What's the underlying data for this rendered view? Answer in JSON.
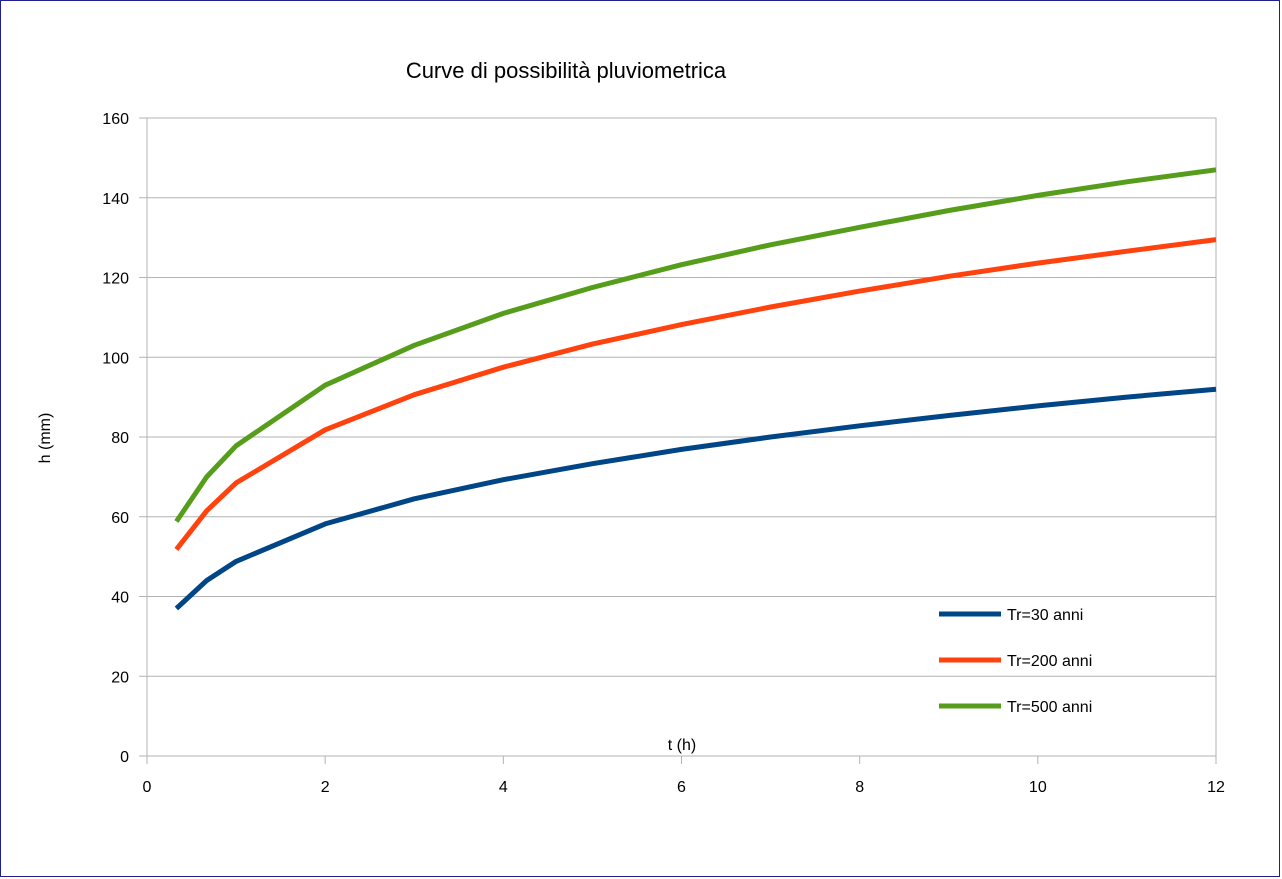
{
  "chart_data": {
    "type": "line",
    "title": "Curve di possibilità pluviometrica",
    "xlabel": "t (h)",
    "ylabel": "h (mm)",
    "xlim": [
      0,
      12
    ],
    "ylim": [
      0,
      160
    ],
    "xticks": [
      0,
      2,
      4,
      6,
      8,
      10,
      12
    ],
    "yticks": [
      0,
      20,
      40,
      60,
      80,
      100,
      120,
      140,
      160
    ],
    "grid": "horizontal",
    "legend_position": "bottom-right",
    "series": [
      {
        "name": "Tr=30 anni",
        "color": "#004586",
        "x": [
          0.33,
          0.67,
          1,
          2,
          3,
          4,
          5,
          6,
          7,
          8,
          9,
          10,
          11,
          12
        ],
        "y": [
          37,
          44,
          48.8,
          58.2,
          64.5,
          69.3,
          73.3,
          76.9,
          80.0,
          82.8,
          85.4,
          87.8,
          90.0,
          92.0
        ]
      },
      {
        "name": "Tr=200 anni",
        "color": "#ff420e",
        "x": [
          0.33,
          0.67,
          1,
          2,
          3,
          4,
          5,
          6,
          7,
          8,
          9,
          10,
          11,
          12
        ],
        "y": [
          51.8,
          61.5,
          68.5,
          81.8,
          90.6,
          97.5,
          103.3,
          108.2,
          112.6,
          116.6,
          120.3,
          123.6,
          126.6,
          129.5
        ]
      },
      {
        "name": "Tr=500 anni",
        "color": "#579d1c",
        "x": [
          0.33,
          0.67,
          1,
          2,
          3,
          4,
          5,
          6,
          7,
          8,
          9,
          10,
          11,
          12
        ],
        "y": [
          58.8,
          70,
          77.8,
          93,
          103,
          111,
          117.5,
          123.2,
          128.2,
          132.6,
          136.8,
          140.6,
          144.0,
          147.0
        ]
      }
    ]
  }
}
